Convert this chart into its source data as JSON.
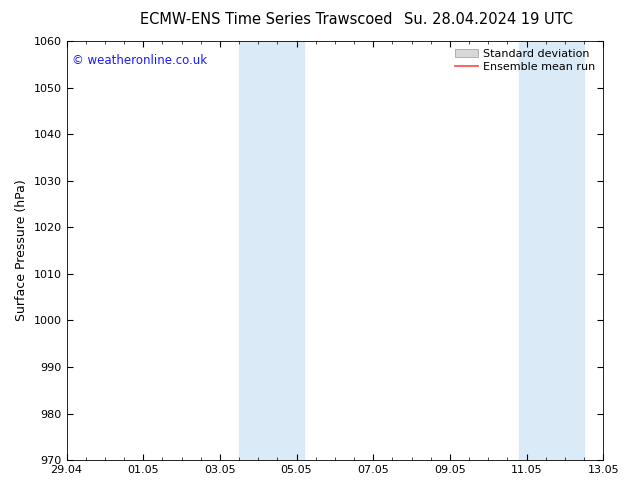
{
  "title_left": "ECMW-ENS Time Series Trawscoed",
  "title_right": "Su. 28.04.2024 19 UTC",
  "ylabel": "Surface Pressure (hPa)",
  "ylim": [
    970,
    1060
  ],
  "yticks": [
    970,
    980,
    990,
    1000,
    1010,
    1020,
    1030,
    1040,
    1050,
    1060
  ],
  "xlim_start": 0,
  "xlim_end": 14,
  "xtick_labels": [
    "29.04",
    "01.05",
    "03.05",
    "05.05",
    "07.05",
    "09.05",
    "11.05",
    "13.05"
  ],
  "xtick_positions": [
    0,
    2,
    4,
    6,
    8,
    10,
    12,
    14
  ],
  "shaded_bands": [
    {
      "xmin": 4.5,
      "xmax": 6.2
    },
    {
      "xmin": 11.8,
      "xmax": 13.5
    }
  ],
  "shade_color": "#daeaf7",
  "shade_alpha": 1.0,
  "ensemble_mean_color": "#ff4444",
  "watermark": "© weatheronline.co.uk",
  "watermark_color": "#1a1aff",
  "legend_std_color": "#d8d8d8",
  "legend_mean_color": "#ff4444",
  "background_color": "#ffffff",
  "plot_bg_color": "#ffffff",
  "title_fontsize": 10.5,
  "axis_fontsize": 9,
  "tick_fontsize": 8,
  "legend_fontsize": 8
}
